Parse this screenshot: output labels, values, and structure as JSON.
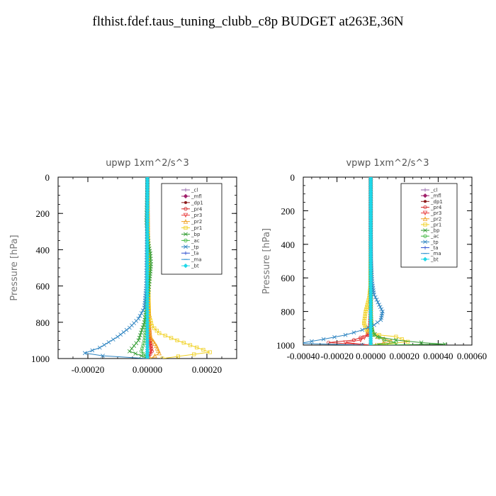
{
  "title": "flthist.fdef.taus_tuning_clubb_c8p  BUDGET at263E,36N",
  "chart_data": [
    {
      "type": "line",
      "title": "upwp   1xm^2/s^3",
      "ylabel": "Pressure [hPa]",
      "xlabel": "",
      "xlim": [
        -0.0003,
        0.0003
      ],
      "ylim": [
        1000,
        0
      ],
      "x_ticks": [
        "-0.00020",
        "0.00000",
        "0.00020"
      ],
      "x_tick_values": [
        -0.0002,
        0,
        0.0002
      ],
      "y_ticks": [
        "0",
        "200",
        "400",
        "600",
        "800",
        "1000"
      ],
      "y_tick_values": [
        0,
        200,
        400,
        600,
        800,
        1000
      ],
      "legend_position": "top-right",
      "series": [
        {
          "name": "_cl",
          "color": "#8e5ca6",
          "marker": "+",
          "x": [
            0,
            0,
            0,
            0,
            0,
            0,
            0
          ],
          "y": [
            0,
            200,
            400,
            600,
            800,
            950,
            1000
          ]
        },
        {
          "name": "_mfl",
          "color": "#a0206a",
          "marker": "diamond",
          "x": [
            0,
            0,
            0,
            0,
            0,
            0,
            0
          ],
          "y": [
            0,
            200,
            400,
            600,
            800,
            950,
            1000
          ]
        },
        {
          "name": "_dp1",
          "color": "#8b1a1a",
          "marker": "dot",
          "x": [
            0,
            0,
            0,
            0,
            0,
            0,
            0
          ],
          "y": [
            0,
            200,
            400,
            600,
            800,
            950,
            1000
          ]
        },
        {
          "name": "_pr4",
          "color": "#d42a2a",
          "marker": "circle",
          "x": [
            0,
            2e-06,
            3e-06,
            3e-06,
            5e-06,
            1e-05,
            1.5e-05,
            4e-06,
            0
          ],
          "y": [
            0,
            300,
            400,
            600,
            800,
            900,
            960,
            990,
            1000
          ]
        },
        {
          "name": "_pr3",
          "color": "#e83a3a",
          "marker": "triangle-down",
          "x": [
            0,
            1e-06,
            2e-06,
            2e-06,
            4e-06,
            8e-06,
            1.2e-05,
            3e-06,
            0
          ],
          "y": [
            0,
            300,
            400,
            600,
            800,
            900,
            960,
            990,
            1000
          ]
        },
        {
          "name": "_pr2",
          "color": "#f0a020",
          "marker": "triangle-up",
          "x": [
            0,
            1e-06,
            2e-06,
            3e-06,
            4e-06,
            1e-05,
            3e-05,
            4e-05,
            1e-05
          ],
          "y": [
            0,
            200,
            400,
            600,
            800,
            880,
            930,
            970,
            1000
          ]
        },
        {
          "name": "_pr1",
          "color": "#f0d020",
          "marker": "square",
          "x": [
            0,
            1e-06,
            2e-06,
            3e-06,
            6e-06,
            1.5e-05,
            4e-05,
            0.0001,
            0.00021,
            5e-05
          ],
          "y": [
            0,
            200,
            400,
            600,
            760,
            820,
            860,
            900,
            965,
            1000
          ]
        },
        {
          "name": "_bp",
          "color": "#2e9a2e",
          "marker": "x",
          "x": [
            0,
            -3e-06,
            5e-06,
            1e-05,
            1.2e-05,
            8e-06,
            3e-06,
            -1e-05,
            -3e-05,
            -6e-05,
            -2e-05,
            0
          ],
          "y": [
            0,
            250,
            380,
            420,
            480,
            560,
            650,
            800,
            900,
            960,
            985,
            1000
          ]
        },
        {
          "name": "_ac",
          "color": "#40b840",
          "marker": "circle",
          "x": [
            0,
            0,
            0,
            0,
            -3e-06,
            -1e-05,
            -2e-05,
            -5e-06,
            0
          ],
          "y": [
            0,
            200,
            400,
            600,
            800,
            900,
            960,
            990,
            1000
          ]
        },
        {
          "name": "_tp",
          "color": "#2a82c0",
          "marker": "x",
          "x": [
            0,
            -1e-06,
            -2e-06,
            -4e-06,
            -1e-05,
            -3e-05,
            -6e-05,
            -0.0001,
            -0.00016,
            -0.00021,
            -0.00015,
            0
          ],
          "y": [
            0,
            200,
            400,
            600,
            720,
            780,
            830,
            880,
            940,
            970,
            985,
            1000
          ]
        },
        {
          "name": "_ta",
          "color": "#3050d0",
          "marker": "+",
          "x": [
            0,
            0,
            0,
            0,
            0,
            0,
            0
          ],
          "y": [
            0,
            200,
            400,
            600,
            800,
            950,
            1000
          ]
        },
        {
          "name": "_ma",
          "color": "#2a90d0",
          "marker": "dash",
          "x": [
            0,
            0,
            0,
            0,
            0,
            0,
            0
          ],
          "y": [
            0,
            200,
            400,
            600,
            800,
            950,
            1000
          ]
        },
        {
          "name": "_bt",
          "color": "#20d8e8",
          "marker": "diamond",
          "x": [
            0,
            0,
            0,
            0,
            0,
            0,
            0
          ],
          "y": [
            0,
            200,
            400,
            600,
            800,
            950,
            1000
          ]
        }
      ]
    },
    {
      "type": "line",
      "title": "vpwp   1xm^2/s^3",
      "ylabel": "Pressure [hPa]",
      "xlabel": "",
      "xlim": [
        -0.0004,
        0.0006
      ],
      "ylim": [
        1000,
        0
      ],
      "x_ticks": [
        "-0.00040",
        "-0.00020",
        "0.00000",
        "0.00020",
        "0.00040",
        "0.00060"
      ],
      "x_tick_values": [
        -0.0004,
        -0.0002,
        0,
        0.0002,
        0.0004,
        0.0006
      ],
      "y_ticks": [
        "0",
        "200",
        "400",
        "600",
        "800",
        "1000"
      ],
      "y_tick_values": [
        0,
        200,
        400,
        600,
        800,
        1000
      ],
      "legend_position": "top-right",
      "series": [
        {
          "name": "_cl",
          "color": "#8e5ca6",
          "marker": "+",
          "x": [
            0,
            0,
            0,
            0,
            0,
            0,
            0
          ],
          "y": [
            0,
            200,
            400,
            600,
            800,
            950,
            1000
          ]
        },
        {
          "name": "_mfl",
          "color": "#a0206a",
          "marker": "diamond",
          "x": [
            0,
            0,
            0,
            0,
            0,
            0,
            0
          ],
          "y": [
            0,
            200,
            400,
            600,
            800,
            950,
            1000
          ]
        },
        {
          "name": "_dp1",
          "color": "#8b1a1a",
          "marker": "dot",
          "x": [
            0,
            0,
            0,
            0,
            0,
            0,
            0
          ],
          "y": [
            0,
            200,
            400,
            600,
            800,
            950,
            1000
          ]
        },
        {
          "name": "_pr4",
          "color": "#d42a2a",
          "marker": "circle",
          "x": [
            0,
            0,
            0,
            -5e-06,
            -2e-05,
            -0.0001,
            -0.00025,
            0
          ],
          "y": [
            0,
            400,
            800,
            900,
            940,
            970,
            985,
            1000
          ]
        },
        {
          "name": "_pr3",
          "color": "#e83a3a",
          "marker": "triangle-down",
          "x": [
            0,
            0,
            0,
            -4e-06,
            -1.5e-05,
            -6e-05,
            -0.00015,
            0
          ],
          "y": [
            0,
            400,
            800,
            900,
            940,
            970,
            985,
            1000
          ]
        },
        {
          "name": "_pr2",
          "color": "#f0a020",
          "marker": "triangle-up",
          "x": [
            0,
            0,
            1e-06,
            4e-06,
            1e-05,
            4e-05,
            0.00012,
            3e-05
          ],
          "y": [
            0,
            400,
            800,
            880,
            920,
            950,
            975,
            1000
          ]
        },
        {
          "name": "_pr1",
          "color": "#f0d020",
          "marker": "square",
          "x": [
            0,
            0,
            -2e-06,
            -1e-05,
            -3e-05,
            -4e-05,
            -2e-05,
            5e-05,
            0.00015,
            0.00022,
            5e-05
          ],
          "y": [
            0,
            400,
            650,
            720,
            800,
            870,
            920,
            940,
            950,
            980,
            1000
          ]
        },
        {
          "name": "_bp",
          "color": "#2e9a2e",
          "marker": "x",
          "x": [
            0,
            0,
            0,
            2e-06,
            1e-05,
            4e-05,
            0.00015,
            0.0003,
            0.00044,
            5e-05
          ],
          "y": [
            0,
            400,
            700,
            850,
            920,
            950,
            970,
            985,
            995,
            1000
          ]
        },
        {
          "name": "_ac",
          "color": "#40b840",
          "marker": "circle",
          "x": [
            0,
            0,
            0,
            5e-06,
            2e-05,
            8e-05,
            0.00015,
            0
          ],
          "y": [
            0,
            400,
            800,
            900,
            940,
            970,
            985,
            1000
          ]
        },
        {
          "name": "_tp",
          "color": "#2a82c0",
          "marker": "x",
          "x": [
            0,
            0,
            2e-06,
            8e-06,
            2e-05,
            5e-05,
            7e-05,
            6e-05,
            2e-05,
            -5e-05,
            -0.00015,
            -0.00028,
            -0.00042,
            -5e-05
          ],
          "y": [
            0,
            300,
            500,
            620,
            700,
            760,
            800,
            850,
            880,
            910,
            940,
            965,
            990,
            1000
          ]
        },
        {
          "name": "_ta",
          "color": "#3050d0",
          "marker": "+",
          "x": [
            0,
            0,
            0,
            0,
            0,
            0,
            0
          ],
          "y": [
            0,
            200,
            400,
            600,
            800,
            950,
            1000
          ]
        },
        {
          "name": "_ma",
          "color": "#2a90d0",
          "marker": "dash",
          "x": [
            0,
            0,
            0,
            0,
            0,
            0,
            0
          ],
          "y": [
            0,
            200,
            400,
            600,
            800,
            950,
            1000
          ]
        },
        {
          "name": "_bt",
          "color": "#20d8e8",
          "marker": "diamond",
          "x": [
            0,
            0,
            0,
            0,
            0,
            0,
            0
          ],
          "y": [
            0,
            200,
            400,
            600,
            800,
            950,
            1000
          ]
        }
      ]
    }
  ]
}
